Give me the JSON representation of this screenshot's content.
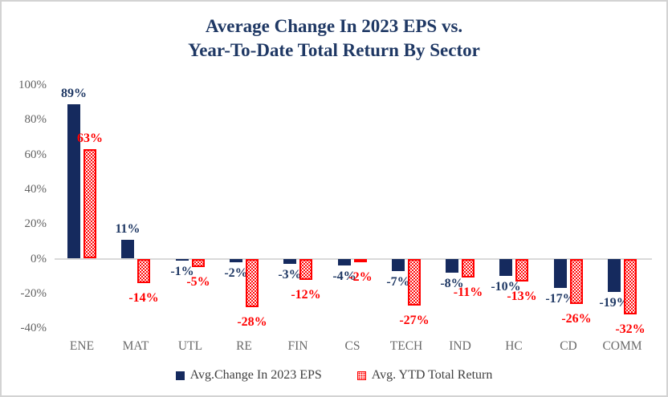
{
  "chart_data": {
    "type": "bar",
    "title_line1": "Average Change In 2023 EPS vs.",
    "title_line2": "Year-To-Date Total Return By Sector",
    "categories": [
      "ENE",
      "MAT",
      "UTL",
      "RE",
      "FIN",
      "CS",
      "TECH",
      "IND",
      "HC",
      "CD",
      "COMM"
    ],
    "series": [
      {
        "name": "Avg.Change In 2023 EPS",
        "pattern": "solid",
        "color": "#152a5e",
        "label_color": "#1f3864",
        "values": [
          89,
          11,
          -1,
          -2,
          -3,
          -4,
          -7,
          -8,
          -10,
          -17,
          -19
        ]
      },
      {
        "name": "Avg. YTD Total Return",
        "pattern": "dotted",
        "color": "#ff0000",
        "label_color": "#ff0000",
        "values": [
          63,
          -14,
          -5,
          -28,
          -12,
          -2,
          -27,
          -11,
          -13,
          -26,
          -32
        ]
      }
    ],
    "value_suffix": "%",
    "y_tick_labels": [
      "100%",
      "80%",
      "60%",
      "40%",
      "20%",
      "0%",
      "-20%",
      "-40%"
    ],
    "y_tick_values": [
      100,
      80,
      60,
      40,
      20,
      0,
      -20,
      -40
    ],
    "ylim": [
      -40,
      100
    ],
    "grid": false,
    "legend_position": "bottom",
    "axis_line_color": "#d9d9d9",
    "tick_text_color": "#636363"
  }
}
